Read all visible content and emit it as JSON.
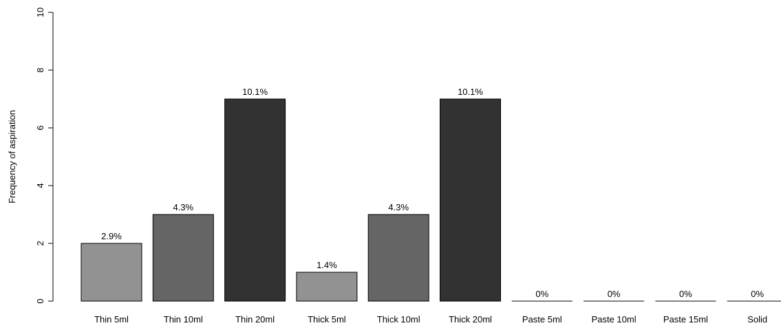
{
  "chart_data": {
    "type": "bar",
    "title": "",
    "xlabel": "",
    "ylabel": "Frequency of aspiration",
    "ylim": [
      0,
      10
    ],
    "yticks": [
      0,
      2,
      4,
      6,
      8,
      10
    ],
    "grid": false,
    "categories": [
      "Thin 5ml",
      "Thin 10ml",
      "Thin 20ml",
      "Thick 5ml",
      "Thick 10ml",
      "Thick 20ml",
      "Paste 5ml",
      "Paste 10ml",
      "Paste 15ml",
      "Solid"
    ],
    "values": [
      2,
      3,
      7,
      1,
      3,
      7,
      0,
      0,
      0,
      0
    ],
    "data_labels": [
      "2.9%",
      "4.3%",
      "10.1%",
      "1.4%",
      "4.3%",
      "10.1%",
      "0%",
      "0%",
      "0%",
      "0%"
    ],
    "bar_colors": [
      "#929292",
      "#656565",
      "#323232",
      "#929292",
      "#656565",
      "#323232",
      "#929292",
      "#656565",
      "#323232",
      "#929292"
    ]
  }
}
